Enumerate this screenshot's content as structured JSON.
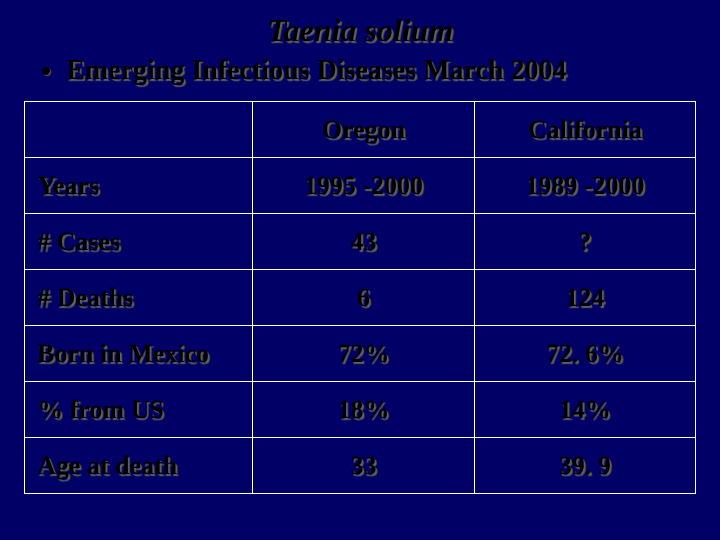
{
  "slide": {
    "title": "Taenia solium",
    "bullet": "Emerging Infectious Diseases March 2004",
    "background_color": "#000066",
    "border_color": "#ffffff",
    "text_color": "#000000",
    "shadow_color": "#606060",
    "title_fontsize": 32,
    "bullet_fontsize": 28,
    "cell_fontsize": 26
  },
  "table": {
    "type": "table",
    "columns": [
      "",
      "Oregon",
      "California"
    ],
    "col_align": [
      "left",
      "center",
      "center"
    ],
    "col_widths_pct": [
      34,
      33,
      33
    ],
    "rows": [
      [
        "Years",
        "1995 -2000",
        "1989 -2000"
      ],
      [
        "# Cases",
        "43",
        "?"
      ],
      [
        "# Deaths",
        "6",
        "124"
      ],
      [
        "Born in Mexico",
        "72%",
        "72. 6%"
      ],
      [
        "% from US",
        "18%",
        "14%"
      ],
      [
        "Age at death",
        "33",
        "39. 9"
      ]
    ]
  }
}
